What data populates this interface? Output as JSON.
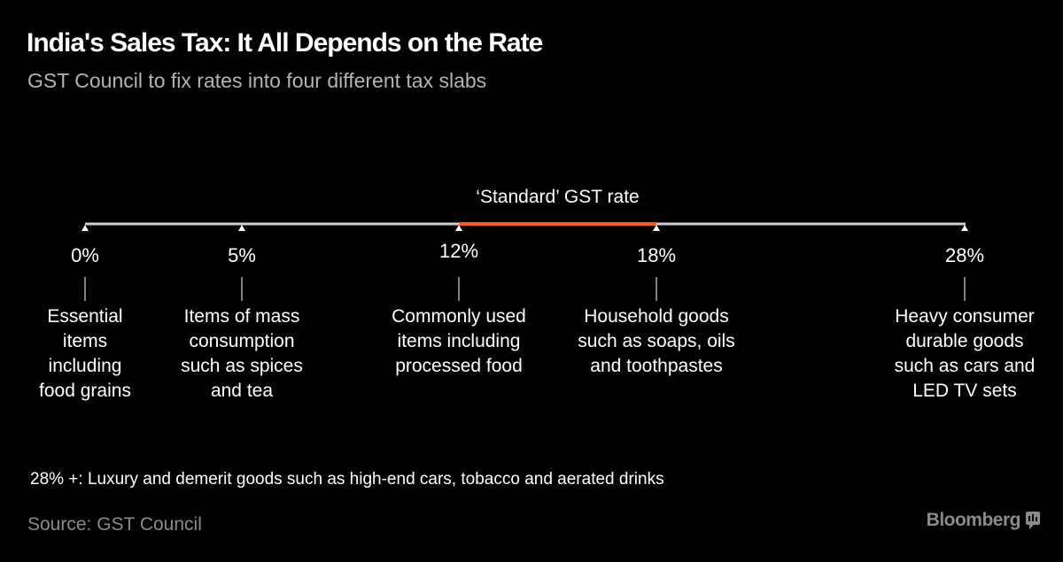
{
  "header": {
    "title": "India's Sales Tax: It All Depends on the Rate",
    "subtitle": "GST Council to fix rates into four different tax slabs"
  },
  "chart_data": {
    "type": "timeline",
    "title": "India's Sales Tax: It All Depends on the Rate",
    "subtitle": "GST Council to fix rates into four different tax slabs",
    "axis_range": [
      0,
      28
    ],
    "highlight": {
      "label": "‘Standard’ GST rate",
      "from": 12,
      "to": 18,
      "color": "#ff5a1f"
    },
    "points": [
      {
        "value": 0,
        "label": "0%",
        "description": [
          "Essential",
          "items",
          "including",
          "food grains"
        ]
      },
      {
        "value": 5,
        "label": "5%",
        "description": [
          "Items of mass",
          "consumption",
          "such as spices",
          "and tea"
        ]
      },
      {
        "value": 12,
        "label": "12%",
        "description": [
          "Commonly used",
          "items including",
          "processed food"
        ]
      },
      {
        "value": 18,
        "label": "18%",
        "description": [
          "Household goods",
          "such as soaps, oils",
          "and toothpastes"
        ]
      },
      {
        "value": 28,
        "label": "28%",
        "description": [
          "Heavy consumer",
          "durable goods",
          "such as cars and",
          "LED TV sets"
        ]
      }
    ],
    "line_color": "#cfcfcf"
  },
  "footnote": "28% +: Luxury and demerit goods such as high-end cars, tobacco and aerated drinks",
  "source": "Source: GST Council",
  "brand": {
    "name": "Bloomberg",
    "color": "#8a8a8a"
  }
}
